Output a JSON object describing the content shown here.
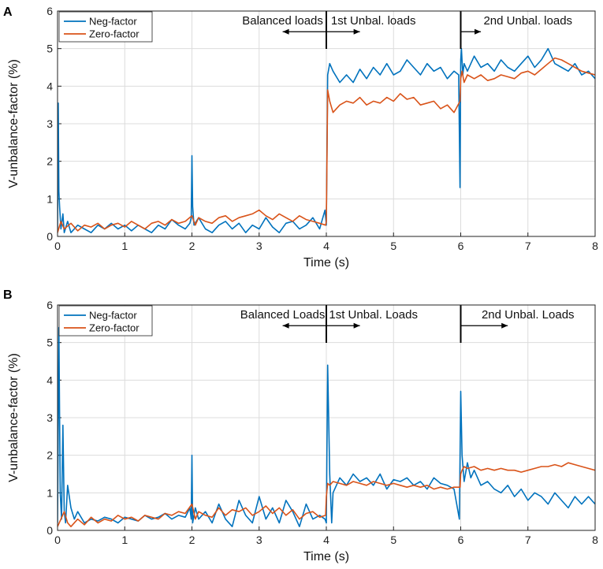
{
  "chart_data": [
    {
      "panel": "A",
      "type": "line",
      "xlabel": "Time (s)",
      "ylabel": "V-unbalance-factor (%)",
      "xlim": [
        0,
        8
      ],
      "ylim": [
        0,
        6
      ],
      "xticks": [
        "0",
        "1",
        "2",
        "3",
        "4",
        "5",
        "6",
        "7",
        "8"
      ],
      "yticks": [
        "0",
        "1",
        "2",
        "3",
        "4",
        "5",
        "6"
      ],
      "grid": true,
      "legend_position": "top-left",
      "annotations": [
        {
          "text": "Balanced loads",
          "x": 3.35
        },
        {
          "text": "1st Unbal. loads",
          "x": 4.7
        },
        {
          "text": "2nd Unbal. loads",
          "x": 7.0
        }
      ],
      "arrows": [
        {
          "from": 4.0,
          "to": 3.35,
          "y": 5.45
        },
        {
          "from": 4.0,
          "to": 4.5,
          "y": 5.45
        },
        {
          "from": 6.0,
          "to": 6.3,
          "y": 5.45
        }
      ],
      "dividers": [
        4.0,
        6.0
      ],
      "series": [
        {
          "name": "Neg-factor",
          "color": "#0072BD",
          "x": [
            0,
            0.01,
            0.02,
            0.03,
            0.05,
            0.08,
            0.1,
            0.15,
            0.2,
            0.3,
            0.4,
            0.5,
            0.6,
            0.7,
            0.8,
            0.9,
            1.0,
            1.1,
            1.2,
            1.3,
            1.4,
            1.5,
            1.6,
            1.7,
            1.8,
            1.9,
            1.97,
            1.99,
            2.0,
            2.01,
            2.03,
            2.1,
            2.2,
            2.3,
            2.4,
            2.5,
            2.6,
            2.7,
            2.8,
            2.9,
            3.0,
            3.1,
            3.2,
            3.3,
            3.4,
            3.5,
            3.6,
            3.7,
            3.8,
            3.9,
            3.98,
            4.0,
            4.02,
            4.05,
            4.1,
            4.2,
            4.3,
            4.4,
            4.5,
            4.6,
            4.7,
            4.8,
            4.9,
            5.0,
            5.1,
            5.2,
            5.3,
            5.4,
            5.5,
            5.6,
            5.7,
            5.8,
            5.9,
            5.97,
            5.99,
            6.0,
            6.01,
            6.03,
            6.05,
            6.1,
            6.2,
            6.3,
            6.4,
            6.5,
            6.6,
            6.7,
            6.8,
            6.9,
            7.0,
            7.1,
            7.2,
            7.3,
            7.4,
            7.5,
            7.6,
            7.7,
            7.8,
            7.9,
            8.0
          ],
          "values": [
            0.1,
            3.55,
            1.2,
            0.8,
            0.2,
            0.6,
            0.1,
            0.4,
            0.1,
            0.3,
            0.2,
            0.1,
            0.3,
            0.2,
            0.35,
            0.2,
            0.3,
            0.15,
            0.3,
            0.2,
            0.1,
            0.3,
            0.2,
            0.45,
            0.3,
            0.2,
            0.35,
            0.5,
            2.15,
            0.8,
            0.3,
            0.5,
            0.2,
            0.1,
            0.3,
            0.4,
            0.2,
            0.35,
            0.1,
            0.3,
            0.2,
            0.5,
            0.25,
            0.1,
            0.35,
            0.4,
            0.2,
            0.3,
            0.5,
            0.2,
            0.7,
            0.3,
            4.3,
            4.6,
            4.4,
            4.1,
            4.3,
            4.1,
            4.45,
            4.2,
            4.5,
            4.3,
            4.6,
            4.3,
            4.4,
            4.7,
            4.5,
            4.3,
            4.6,
            4.4,
            4.5,
            4.2,
            4.4,
            4.3,
            1.3,
            4.7,
            5.0,
            4.3,
            4.6,
            4.4,
            4.8,
            4.5,
            4.6,
            4.4,
            4.7,
            4.5,
            4.4,
            4.6,
            4.8,
            4.5,
            4.7,
            5.0,
            4.6,
            4.5,
            4.4,
            4.6,
            4.3,
            4.4,
            4.2
          ]
        },
        {
          "name": "Zero-factor",
          "color": "#D95319",
          "x": [
            0,
            0.05,
            0.1,
            0.2,
            0.3,
            0.4,
            0.5,
            0.6,
            0.7,
            0.8,
            0.9,
            1.0,
            1.1,
            1.2,
            1.3,
            1.4,
            1.5,
            1.6,
            1.7,
            1.8,
            1.9,
            2.0,
            2.05,
            2.1,
            2.2,
            2.3,
            2.4,
            2.5,
            2.6,
            2.7,
            2.8,
            2.9,
            3.0,
            3.1,
            3.2,
            3.3,
            3.4,
            3.5,
            3.6,
            3.7,
            3.8,
            3.9,
            3.99,
            4.0,
            4.02,
            4.05,
            4.1,
            4.2,
            4.3,
            4.4,
            4.5,
            4.6,
            4.7,
            4.8,
            4.9,
            5.0,
            5.1,
            5.2,
            5.3,
            5.4,
            5.5,
            5.6,
            5.7,
            5.8,
            5.9,
            5.99,
            6.0,
            6.02,
            6.05,
            6.1,
            6.2,
            6.3,
            6.4,
            6.5,
            6.6,
            6.7,
            6.8,
            6.9,
            7.0,
            7.1,
            7.2,
            7.3,
            7.4,
            7.5,
            7.6,
            7.7,
            7.8,
            7.9,
            8.0
          ],
          "values": [
            0.1,
            0.4,
            0.2,
            0.35,
            0.15,
            0.3,
            0.25,
            0.35,
            0.2,
            0.3,
            0.35,
            0.25,
            0.4,
            0.3,
            0.2,
            0.35,
            0.4,
            0.3,
            0.45,
            0.35,
            0.4,
            0.55,
            0.3,
            0.5,
            0.4,
            0.35,
            0.5,
            0.55,
            0.4,
            0.5,
            0.55,
            0.6,
            0.7,
            0.55,
            0.45,
            0.6,
            0.5,
            0.4,
            0.55,
            0.45,
            0.4,
            0.35,
            0.3,
            0.4,
            3.9,
            3.6,
            3.3,
            3.5,
            3.6,
            3.55,
            3.7,
            3.5,
            3.6,
            3.55,
            3.7,
            3.6,
            3.8,
            3.65,
            3.7,
            3.5,
            3.55,
            3.6,
            3.4,
            3.5,
            3.3,
            3.6,
            4.2,
            4.4,
            4.1,
            4.3,
            4.2,
            4.3,
            4.15,
            4.2,
            4.3,
            4.25,
            4.2,
            4.35,
            4.4,
            4.3,
            4.45,
            4.6,
            4.75,
            4.7,
            4.6,
            4.5,
            4.4,
            4.35,
            4.3
          ]
        }
      ]
    },
    {
      "panel": "B",
      "type": "line",
      "xlabel": "Time (s)",
      "ylabel": "V-unbalance-factor (%)",
      "xlim": [
        0,
        8
      ],
      "ylim": [
        0,
        6
      ],
      "xticks": [
        "0",
        "1",
        "2",
        "3",
        "4",
        "5",
        "6",
        "7",
        "8"
      ],
      "yticks": [
        "0",
        "1",
        "2",
        "3",
        "4",
        "5",
        "6"
      ],
      "grid": true,
      "legend_position": "top-left",
      "annotations": [
        {
          "text": "Balanced Loads",
          "x": 3.35
        },
        {
          "text": "1st Unbal. Loads",
          "x": 4.7
        },
        {
          "text": "2nd Unbal. Loads",
          "x": 7.0
        }
      ],
      "arrows": [
        {
          "from": 4.0,
          "to": 3.35,
          "y": 5.45
        },
        {
          "from": 4.0,
          "to": 4.5,
          "y": 5.45
        },
        {
          "from": 6.0,
          "to": 6.7,
          "y": 5.45
        }
      ],
      "dividers": [
        4.0,
        6.0
      ],
      "series": [
        {
          "name": "Neg-factor",
          "color": "#0072BD",
          "x": [
            0,
            0.02,
            0.04,
            0.06,
            0.08,
            0.1,
            0.12,
            0.15,
            0.2,
            0.25,
            0.3,
            0.4,
            0.5,
            0.6,
            0.7,
            0.8,
            0.9,
            1.0,
            1.1,
            1.2,
            1.3,
            1.4,
            1.5,
            1.6,
            1.7,
            1.8,
            1.9,
            1.97,
            1.99,
            2.0,
            2.01,
            2.05,
            2.1,
            2.2,
            2.3,
            2.4,
            2.5,
            2.6,
            2.7,
            2.8,
            2.9,
            3.0,
            3.1,
            3.2,
            3.3,
            3.4,
            3.5,
            3.6,
            3.7,
            3.8,
            3.9,
            3.98,
            4.0,
            4.02,
            4.05,
            4.08,
            4.1,
            4.2,
            4.3,
            4.4,
            4.5,
            4.6,
            4.7,
            4.8,
            4.9,
            5.0,
            5.1,
            5.2,
            5.3,
            5.4,
            5.5,
            5.6,
            5.7,
            5.8,
            5.9,
            5.98,
            6.0,
            6.02,
            6.05,
            6.1,
            6.15,
            6.2,
            6.3,
            6.4,
            6.5,
            6.6,
            6.7,
            6.8,
            6.9,
            7.0,
            7.1,
            7.2,
            7.3,
            7.4,
            7.5,
            7.6,
            7.7,
            7.8,
            7.9,
            8.0
          ],
          "values": [
            0.2,
            5.4,
            1.0,
            0.3,
            2.8,
            0.5,
            0.2,
            1.2,
            0.6,
            0.3,
            0.5,
            0.2,
            0.3,
            0.25,
            0.35,
            0.3,
            0.2,
            0.35,
            0.3,
            0.25,
            0.4,
            0.3,
            0.35,
            0.45,
            0.3,
            0.4,
            0.35,
            0.6,
            0.3,
            2.0,
            0.2,
            0.6,
            0.3,
            0.5,
            0.2,
            0.7,
            0.3,
            0.1,
            0.8,
            0.4,
            0.2,
            0.9,
            0.3,
            0.6,
            0.2,
            0.8,
            0.5,
            0.1,
            0.7,
            0.3,
            0.4,
            0.3,
            0.2,
            4.4,
            1.5,
            0.2,
            1.0,
            1.4,
            1.2,
            1.5,
            1.3,
            1.4,
            1.2,
            1.5,
            1.1,
            1.35,
            1.3,
            1.4,
            1.2,
            1.3,
            1.1,
            1.4,
            1.25,
            1.2,
            1.1,
            0.3,
            3.7,
            2.0,
            1.3,
            1.8,
            1.4,
            1.6,
            1.2,
            1.3,
            1.1,
            1.0,
            1.2,
            0.9,
            1.1,
            0.8,
            1.0,
            0.9,
            0.7,
            1.0,
            0.8,
            0.6,
            0.9,
            0.7,
            0.9,
            0.7
          ]
        },
        {
          "name": "Zero-factor",
          "color": "#D95319",
          "x": [
            0,
            0.05,
            0.1,
            0.15,
            0.2,
            0.3,
            0.4,
            0.5,
            0.6,
            0.7,
            0.8,
            0.9,
            1.0,
            1.1,
            1.2,
            1.3,
            1.4,
            1.5,
            1.6,
            1.7,
            1.8,
            1.9,
            2.0,
            2.05,
            2.1,
            2.2,
            2.3,
            2.4,
            2.5,
            2.6,
            2.7,
            2.8,
            2.9,
            3.0,
            3.1,
            3.2,
            3.3,
            3.4,
            3.5,
            3.6,
            3.7,
            3.8,
            3.9,
            3.99,
            4.0,
            4.02,
            4.05,
            4.1,
            4.2,
            4.3,
            4.4,
            4.5,
            4.6,
            4.7,
            4.8,
            4.9,
            5.0,
            5.1,
            5.2,
            5.3,
            5.4,
            5.5,
            5.6,
            5.7,
            5.8,
            5.9,
            5.99,
            6.0,
            6.02,
            6.05,
            6.1,
            6.2,
            6.3,
            6.4,
            6.5,
            6.6,
            6.7,
            6.8,
            6.9,
            7.0,
            7.1,
            7.2,
            7.3,
            7.4,
            7.5,
            7.6,
            7.7,
            7.8,
            7.9,
            8.0
          ],
          "values": [
            0.1,
            0.3,
            0.5,
            0.2,
            0.1,
            0.3,
            0.15,
            0.35,
            0.2,
            0.3,
            0.25,
            0.4,
            0.3,
            0.35,
            0.25,
            0.4,
            0.35,
            0.3,
            0.45,
            0.4,
            0.5,
            0.45,
            0.7,
            0.3,
            0.5,
            0.4,
            0.35,
            0.6,
            0.4,
            0.55,
            0.5,
            0.6,
            0.4,
            0.5,
            0.65,
            0.45,
            0.6,
            0.4,
            0.55,
            0.3,
            0.45,
            0.5,
            0.35,
            0.4,
            0.9,
            1.25,
            1.2,
            1.3,
            1.25,
            1.2,
            1.3,
            1.25,
            1.2,
            1.3,
            1.25,
            1.2,
            1.25,
            1.2,
            1.15,
            1.2,
            1.15,
            1.2,
            1.1,
            1.15,
            1.1,
            1.15,
            1.15,
            1.5,
            1.6,
            1.7,
            1.65,
            1.7,
            1.6,
            1.65,
            1.6,
            1.65,
            1.6,
            1.6,
            1.55,
            1.6,
            1.65,
            1.7,
            1.7,
            1.75,
            1.7,
            1.8,
            1.75,
            1.7,
            1.65,
            1.6
          ]
        }
      ]
    }
  ]
}
